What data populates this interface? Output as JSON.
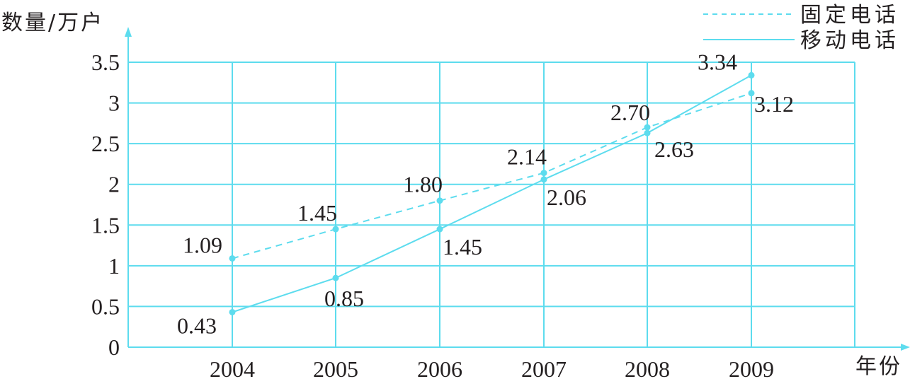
{
  "chart_data": {
    "type": "line",
    "title": "",
    "ylabel": "数量/万户",
    "xlabel": "年份",
    "categories": [
      "2004",
      "2005",
      "2006",
      "2007",
      "2008",
      "2009"
    ],
    "series": [
      {
        "name": "固定电话",
        "style": "dashed",
        "values": [
          1.09,
          1.45,
          1.8,
          2.14,
          2.7,
          3.12
        ]
      },
      {
        "name": "移动电话",
        "style": "solid",
        "values": [
          0.43,
          0.85,
          1.45,
          2.06,
          2.63,
          3.34
        ]
      }
    ],
    "yticks": [
      "0",
      "0.5",
      "1",
      "1.5",
      "2",
      "2.5",
      "3",
      "3.5"
    ],
    "ylim": [
      0,
      3.5
    ],
    "grid": true,
    "legend_position": "top-right",
    "colors": {
      "line": "#5ddcee",
      "text": "#231f20"
    }
  },
  "labels": {
    "y_axis_title": "数量/万户",
    "x_axis_title": "年份",
    "legend_fixed": "固定电话",
    "legend_mobile": "移动电话"
  }
}
